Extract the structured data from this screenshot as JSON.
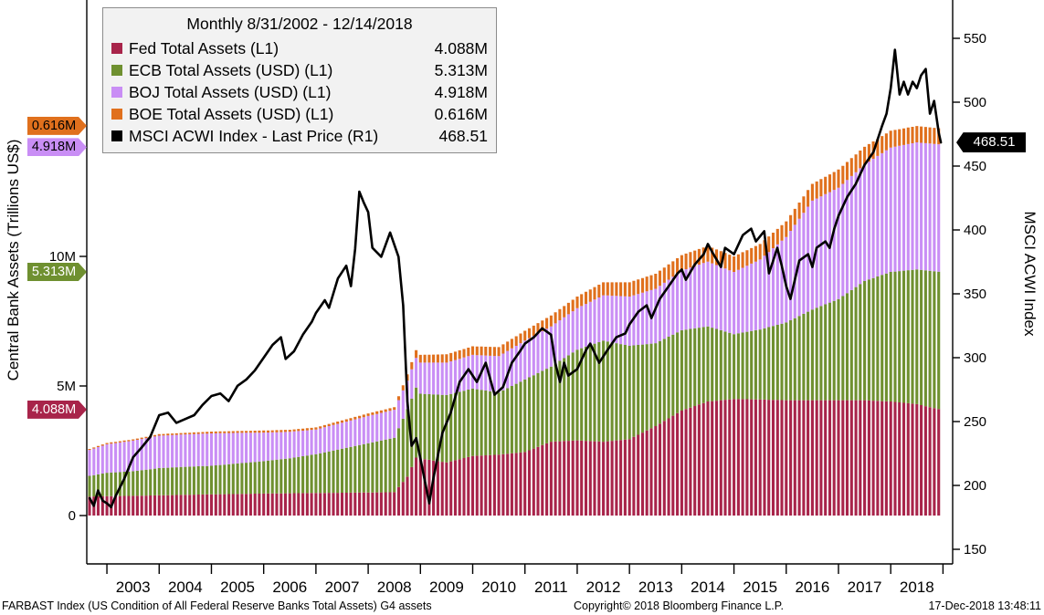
{
  "chart_data": {
    "type": "bar",
    "subtype": "stacked-bar-with-line-overlay",
    "title": "Monthly 8/31/2002 - 12/14/2018",
    "legend_position": "top-left",
    "grid": false,
    "legend": [
      {
        "label": "Fed Total Assets (L1)",
        "value": "4.088M",
        "color": "#a8244a"
      },
      {
        "label": "ECB Total Assets (USD) (L1)",
        "value": "5.313M",
        "color": "#6f9030"
      },
      {
        "label": "BOJ Total Assets (USD) (L1)",
        "value": "4.918M",
        "color": "#c98ef5"
      },
      {
        "label": "BOE Total Assets (USD) (L1)",
        "value": "0.616M",
        "color": "#e0701d"
      },
      {
        "label": "MSCI ACWI Index - Last Price (R1)",
        "value": "468.51",
        "color": "#000000"
      }
    ],
    "left_axis": {
      "label": "Central Bank Assets (Trillions US$)",
      "ticks": [
        "0",
        "5M",
        "10M"
      ],
      "tick_values": [
        0,
        5,
        10
      ],
      "range_trillions": [
        0,
        20
      ]
    },
    "right_axis": {
      "label": "MSCI ACWI Index",
      "ticks": [
        150,
        200,
        250,
        300,
        350,
        400,
        450,
        500,
        550
      ],
      "range": [
        150,
        550
      ]
    },
    "x_axis": {
      "years": [
        2003,
        2004,
        2005,
        2006,
        2007,
        2008,
        2009,
        2010,
        2011,
        2012,
        2013,
        2014,
        2015,
        2016,
        2017,
        2018
      ],
      "start": 2002.667,
      "end": 2018.958
    },
    "axis_badges": {
      "left": [
        {
          "text": "0.616M",
          "color": "#e0701d",
          "text_color": "#000000",
          "axis_value": 14.935
        },
        {
          "text": "4.918M",
          "color": "#c98ef5",
          "text_color": "#000000",
          "axis_value": 14.319
        },
        {
          "text": "5.313M",
          "color": "#6f9030",
          "text_color": "#ffffff",
          "axis_value": 9.401
        },
        {
          "text": "4.088M",
          "color": "#a8244a",
          "text_color": "#ffffff",
          "axis_value": 4.088
        }
      ],
      "right": {
        "text": "468.51",
        "color": "#000000",
        "text_color": "#ffffff",
        "axis_value": 468.51
      }
    },
    "bars": {
      "note": "Monthly stacked bars, trillions USD; values estimated from chart, interpolated between keyframes",
      "stack_order": [
        "fed",
        "ecb",
        "boj",
        "boe"
      ],
      "colors": {
        "fed": "#a8244a",
        "ecb": "#6f9030",
        "boj": "#c98ef5",
        "boe": "#e0701d"
      },
      "start": 2002.667,
      "end": 2018.917,
      "keyframes_x": [
        2002.67,
        2003.0,
        2003.5,
        2004.0,
        2004.5,
        2005.0,
        2005.5,
        2006.0,
        2006.5,
        2007.0,
        2007.5,
        2008.0,
        2008.5,
        2008.75,
        2008.92,
        2009.0,
        2009.5,
        2010.0,
        2010.5,
        2011.0,
        2011.5,
        2012.0,
        2012.5,
        2013.0,
        2013.5,
        2014.0,
        2014.5,
        2015.0,
        2015.5,
        2016.0,
        2016.5,
        2017.0,
        2017.5,
        2018.0,
        2018.5,
        2018.96
      ],
      "fed": [
        0.73,
        0.75,
        0.76,
        0.78,
        0.8,
        0.82,
        0.83,
        0.85,
        0.86,
        0.87,
        0.88,
        0.89,
        0.9,
        1.5,
        2.25,
        2.2,
        2.05,
        2.3,
        2.35,
        2.45,
        2.85,
        2.9,
        2.85,
        2.95,
        3.45,
        4.05,
        4.4,
        4.5,
        4.48,
        4.45,
        4.45,
        4.45,
        4.45,
        4.4,
        4.3,
        4.088
      ],
      "ecb": [
        0.8,
        0.9,
        0.95,
        1.05,
        1.08,
        1.1,
        1.18,
        1.25,
        1.35,
        1.5,
        1.7,
        1.9,
        2.1,
        2.6,
        2.7,
        2.5,
        2.6,
        2.6,
        2.4,
        2.8,
        2.9,
        3.5,
        3.9,
        3.6,
        3.2,
        3.1,
        2.9,
        2.5,
        2.7,
        3.0,
        3.5,
        3.9,
        4.6,
        5.0,
        5.2,
        5.313
      ],
      "boj": [
        1.0,
        1.1,
        1.18,
        1.25,
        1.25,
        1.25,
        1.18,
        1.1,
        1.02,
        0.95,
        1.0,
        1.05,
        1.08,
        1.1,
        1.15,
        1.2,
        1.25,
        1.3,
        1.4,
        1.5,
        1.55,
        1.6,
        1.75,
        1.9,
        2.1,
        2.3,
        2.5,
        2.4,
        2.7,
        3.3,
        4.2,
        4.3,
        4.5,
        4.8,
        4.9,
        4.918
      ],
      "boe": [
        0.04,
        0.05,
        0.05,
        0.06,
        0.06,
        0.07,
        0.07,
        0.08,
        0.08,
        0.08,
        0.09,
        0.1,
        0.1,
        0.25,
        0.3,
        0.3,
        0.32,
        0.33,
        0.35,
        0.38,
        0.42,
        0.45,
        0.5,
        0.55,
        0.58,
        0.6,
        0.6,
        0.6,
        0.6,
        0.6,
        0.65,
        0.7,
        0.68,
        0.65,
        0.63,
        0.616
      ]
    },
    "line": {
      "name": "MSCI ACWI Index - Last Price",
      "color": "#000000",
      "last_price": 468.51,
      "points": [
        [
          2002.67,
          190
        ],
        [
          2002.75,
          184
        ],
        [
          2002.83,
          196
        ],
        [
          2002.92,
          188
        ],
        [
          2003.0,
          186
        ],
        [
          2003.08,
          183
        ],
        [
          2003.17,
          192
        ],
        [
          2003.33,
          205
        ],
        [
          2003.5,
          222
        ],
        [
          2003.67,
          230
        ],
        [
          2003.83,
          238
        ],
        [
          2004.0,
          255
        ],
        [
          2004.17,
          257
        ],
        [
          2004.33,
          249
        ],
        [
          2004.5,
          252
        ],
        [
          2004.67,
          255
        ],
        [
          2004.83,
          263
        ],
        [
          2005.0,
          270
        ],
        [
          2005.17,
          272
        ],
        [
          2005.33,
          266
        ],
        [
          2005.5,
          278
        ],
        [
          2005.67,
          283
        ],
        [
          2005.83,
          290
        ],
        [
          2006.0,
          300
        ],
        [
          2006.17,
          310
        ],
        [
          2006.33,
          316
        ],
        [
          2006.42,
          299
        ],
        [
          2006.58,
          305
        ],
        [
          2006.75,
          318
        ],
        [
          2006.92,
          328
        ],
        [
          2007.0,
          335
        ],
        [
          2007.17,
          345
        ],
        [
          2007.25,
          339
        ],
        [
          2007.42,
          362
        ],
        [
          2007.58,
          372
        ],
        [
          2007.67,
          356
        ],
        [
          2007.75,
          385
        ],
        [
          2007.83,
          430
        ],
        [
          2007.92,
          421
        ],
        [
          2008.0,
          414
        ],
        [
          2008.08,
          386
        ],
        [
          2008.25,
          379
        ],
        [
          2008.42,
          398
        ],
        [
          2008.58,
          379
        ],
        [
          2008.67,
          341
        ],
        [
          2008.75,
          266
        ],
        [
          2008.83,
          231
        ],
        [
          2008.92,
          237
        ],
        [
          2009.0,
          221
        ],
        [
          2009.17,
          186
        ],
        [
          2009.25,
          206
        ],
        [
          2009.42,
          241
        ],
        [
          2009.58,
          257
        ],
        [
          2009.75,
          281
        ],
        [
          2009.92,
          291
        ],
        [
          2010.08,
          281
        ],
        [
          2010.25,
          296
        ],
        [
          2010.42,
          271
        ],
        [
          2010.58,
          277
        ],
        [
          2010.75,
          296
        ],
        [
          2010.92,
          306
        ],
        [
          2011.0,
          311
        ],
        [
          2011.17,
          316
        ],
        [
          2011.33,
          323
        ],
        [
          2011.5,
          318
        ],
        [
          2011.58,
          296
        ],
        [
          2011.67,
          281
        ],
        [
          2011.75,
          296
        ],
        [
          2011.83,
          286
        ],
        [
          2012.0,
          291
        ],
        [
          2012.17,
          306
        ],
        [
          2012.25,
          311
        ],
        [
          2012.42,
          296
        ],
        [
          2012.58,
          306
        ],
        [
          2012.75,
          316
        ],
        [
          2012.92,
          319
        ],
        [
          2013.0,
          326
        ],
        [
          2013.17,
          336
        ],
        [
          2013.33,
          341
        ],
        [
          2013.42,
          331
        ],
        [
          2013.58,
          346
        ],
        [
          2013.75,
          356
        ],
        [
          2013.92,
          366
        ],
        [
          2014.0,
          369
        ],
        [
          2014.08,
          361
        ],
        [
          2014.25,
          373
        ],
        [
          2014.42,
          381
        ],
        [
          2014.5,
          389
        ],
        [
          2014.58,
          383
        ],
        [
          2014.75,
          371
        ],
        [
          2014.83,
          386
        ],
        [
          2015.0,
          381
        ],
        [
          2015.17,
          396
        ],
        [
          2015.33,
          401
        ],
        [
          2015.42,
          391
        ],
        [
          2015.58,
          399
        ],
        [
          2015.67,
          366
        ],
        [
          2015.75,
          376
        ],
        [
          2015.83,
          386
        ],
        [
          2015.92,
          371
        ],
        [
          2016.0,
          356
        ],
        [
          2016.08,
          346
        ],
        [
          2016.25,
          376
        ],
        [
          2016.42,
          381
        ],
        [
          2016.5,
          371
        ],
        [
          2016.58,
          386
        ],
        [
          2016.75,
          391
        ],
        [
          2016.83,
          386
        ],
        [
          2016.92,
          401
        ],
        [
          2017.0,
          411
        ],
        [
          2017.17,
          426
        ],
        [
          2017.33,
          436
        ],
        [
          2017.5,
          451
        ],
        [
          2017.67,
          461
        ],
        [
          2017.83,
          481
        ],
        [
          2017.92,
          491
        ],
        [
          2018.0,
          511
        ],
        [
          2018.08,
          541
        ],
        [
          2018.17,
          506
        ],
        [
          2018.25,
          516
        ],
        [
          2018.33,
          506
        ],
        [
          2018.42,
          516
        ],
        [
          2018.5,
          511
        ],
        [
          2018.58,
          521
        ],
        [
          2018.67,
          526
        ],
        [
          2018.75,
          491
        ],
        [
          2018.83,
          501
        ],
        [
          2018.92,
          476
        ],
        [
          2018.96,
          468.51
        ]
      ]
    }
  },
  "footer": {
    "left": "FARBAST Index (US Condition of All Federal Reserve Banks Total Assets) G4 assets",
    "center": "Copyright© 2018 Bloomberg Finance L.P.",
    "right": "17-Dec-2018 13:48:11"
  }
}
